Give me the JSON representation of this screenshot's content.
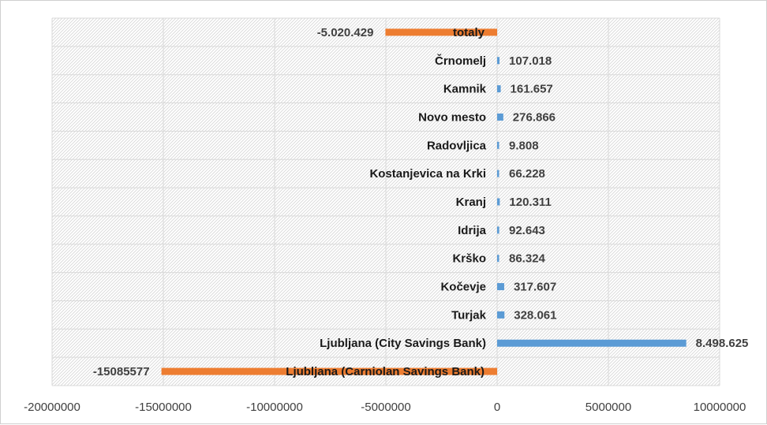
{
  "chart_data": {
    "type": "bar",
    "orientation": "horizontal",
    "categories": [
      "Ljubljana (Carniolan Savings Bank)",
      "Ljubljana (City Savings Bank)",
      "Turjak",
      "Kočevje",
      "Krško",
      "Idrija",
      "Kranj",
      "Kostanjevica na Krki",
      "Radovljica",
      "Novo mesto",
      "Kamnik",
      "Črnomelj",
      "totaly"
    ],
    "values": [
      -15085577,
      8498625,
      328061,
      317607,
      86324,
      92643,
      120311,
      66228,
      9808,
      276866,
      161657,
      107018,
      -5020429
    ],
    "data_labels": [
      "-15085577",
      "8.498.625",
      "328.061",
      "317.607",
      "86.324",
      "92.643",
      "120.311",
      "66.228",
      "9.808",
      "276.866",
      "161.657",
      "107.018",
      "-5.020.429"
    ],
    "xlim": [
      -20000000,
      10000000
    ],
    "x_ticks": [
      -20000000,
      -15000000,
      -10000000,
      -5000000,
      0,
      5000000,
      10000000
    ],
    "x_tick_labels": [
      "-20000000",
      "-15000000",
      "-10000000",
      "-5000000",
      "0",
      "5000000",
      "10000000"
    ],
    "title": "",
    "xlabel": "",
    "ylabel": "",
    "grid": true,
    "legend": "none",
    "colors": {
      "positive": "#5b9bd5",
      "negative": "#ed7d31",
      "grid": "#d9d9d9",
      "hatch": "#d6d6d6",
      "text": "#404040"
    }
  }
}
